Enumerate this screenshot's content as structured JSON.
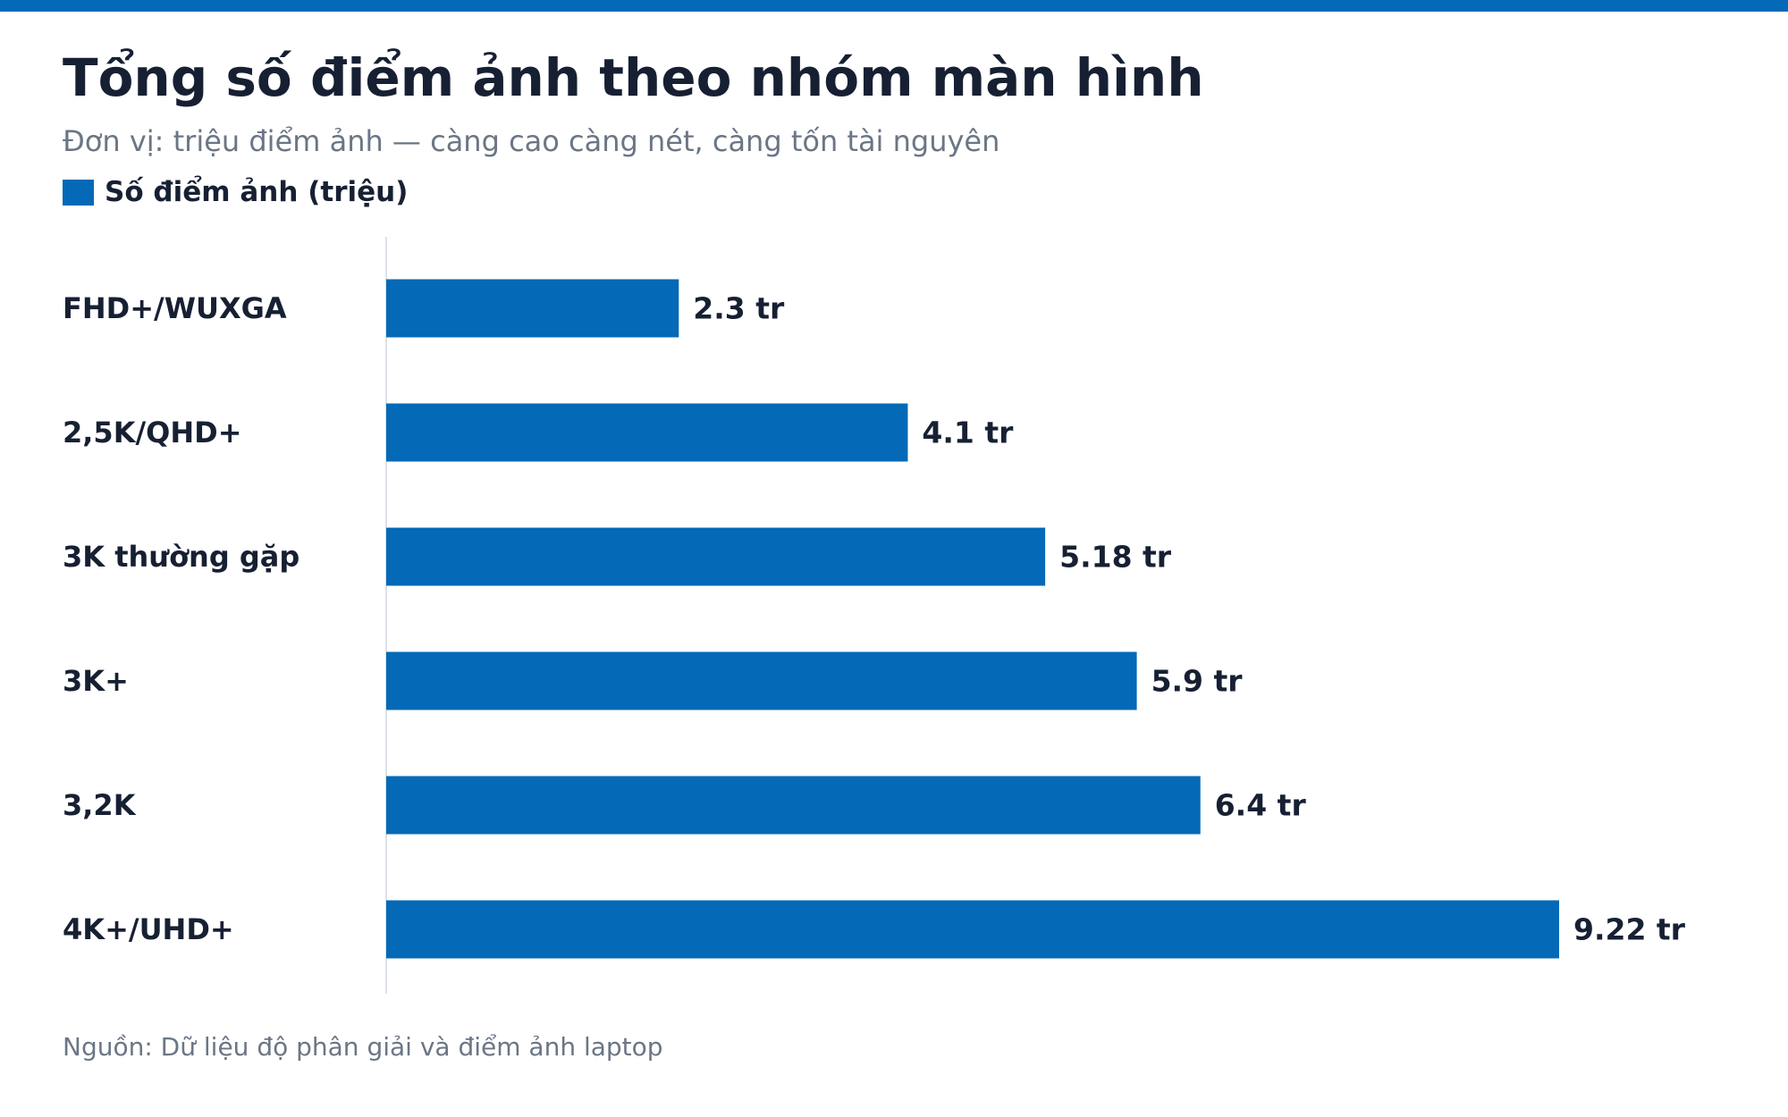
{
  "title": "Tổng số điểm ảnh theo nhóm màn hình",
  "subtitle": "Đơn vị: triệu điểm ảnh — càng cao càng nét, càng tốn tài nguyên",
  "source": "Nguồn: Dữ liệu độ phân giải và điểm ảnh laptop",
  "colors": {
    "accent": "#0469b6",
    "text": "#172033",
    "muted": "#6b7685",
    "axis_line": "#dde2ea"
  },
  "chart_data": {
    "type": "bar",
    "orientation": "horizontal",
    "categories": [
      "FHD+/WUXGA",
      "2,5K/QHD+",
      "3K thường gặp",
      "3K+",
      "3,2K",
      "4K+/UHD+"
    ],
    "series": [
      {
        "name": "Số điểm ảnh (triệu)",
        "values": [
          2.3,
          4.1,
          5.18,
          5.9,
          6.4,
          9.22
        ],
        "value_labels": [
          "2.3 tr",
          "4.1 tr",
          "5.18 tr",
          "5.9 tr",
          "6.4 tr",
          "9.22 tr"
        ]
      }
    ],
    "legend_position": "top-left",
    "grid": false,
    "xlim": [
      0,
      10
    ]
  }
}
